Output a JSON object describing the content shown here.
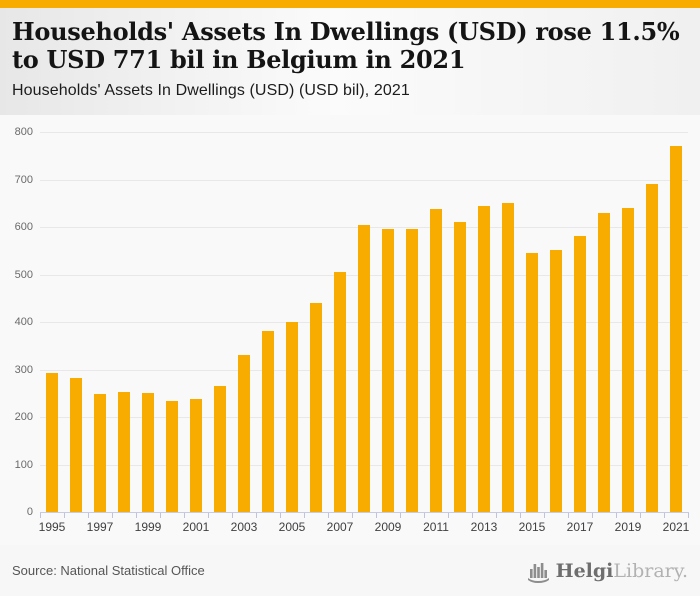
{
  "page": {
    "title": "Households' Assets In Dwellings (USD) rose 11.5% to USD 771 bil in Belgium in 2021",
    "subtitle": "Households' Assets In Dwellings (USD) (USD bil), 2021",
    "accent_color": "#F9AC00"
  },
  "footer": {
    "source": "Source: National Statistical Office",
    "logo_bold": "Helgi",
    "logo_light": "Library.",
    "logo_icon": "bar-chart-icon"
  },
  "chart_data": {
    "type": "bar",
    "title": "Households' Assets In Dwellings (USD) rose 11.5% to USD 771 bil in Belgium in 2021",
    "subtitle": "Households' Assets In Dwellings (USD) (USD bil), 2021",
    "xlabel": "",
    "ylabel": "USD bil",
    "categories": [
      1995,
      1996,
      1997,
      1998,
      1999,
      2000,
      2001,
      2002,
      2003,
      2004,
      2005,
      2006,
      2007,
      2008,
      2009,
      2010,
      2011,
      2012,
      2013,
      2014,
      2015,
      2016,
      2017,
      2018,
      2019,
      2020,
      2021
    ],
    "values": [
      292,
      282,
      249,
      252,
      250,
      234,
      238,
      266,
      330,
      382,
      400,
      440,
      506,
      604,
      596,
      595,
      638,
      611,
      644,
      650,
      546,
      551,
      580,
      630,
      641,
      691,
      771
    ],
    "ylim": [
      0,
      800
    ],
    "yticks": [
      0,
      100,
      200,
      300,
      400,
      500,
      600,
      700,
      800
    ],
    "xtick_labels": [
      "1995",
      "1997",
      "1999",
      "2001",
      "2003",
      "2005",
      "2007",
      "2009",
      "2011",
      "2013",
      "2015",
      "2017",
      "2019",
      "2021"
    ],
    "bar_color": "#F9AC00",
    "grid": true,
    "legend": false
  }
}
